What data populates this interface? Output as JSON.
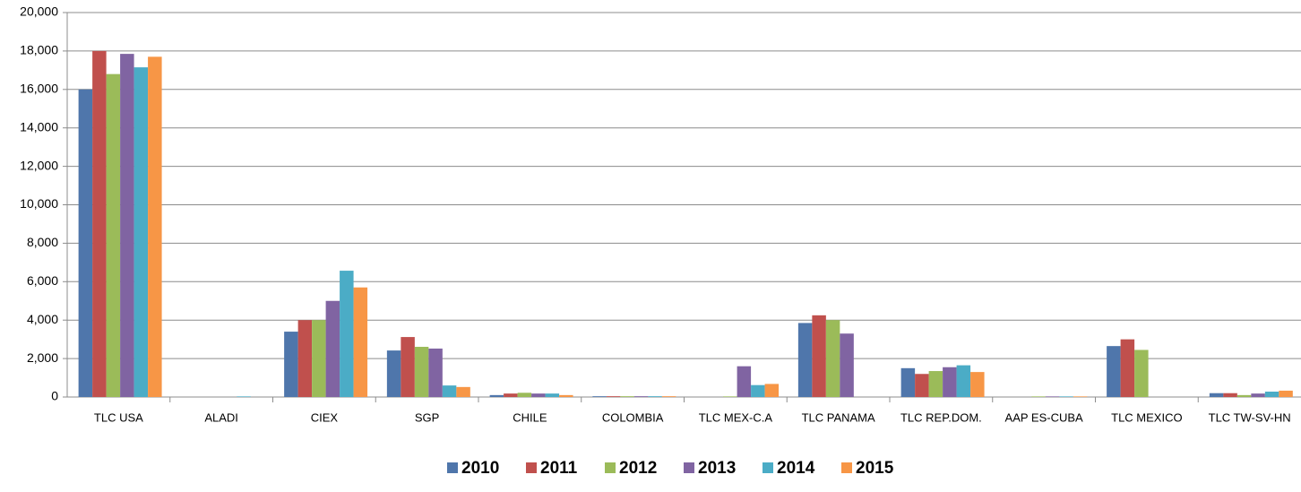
{
  "chart_data": {
    "type": "bar",
    "categories": [
      "TLC USA",
      "ALADI",
      "CIEX",
      "SGP",
      "CHILE",
      "COLOMBIA",
      "TLC MEX-C.A",
      "TLC PANAMA",
      "TLC REP.DOM.",
      "AAP ES-CUBA",
      "TLC MEXICO",
      "TLC TW-SV-HN"
    ],
    "series": [
      {
        "name": "2010",
        "color": "#4f76ab",
        "values": [
          16000,
          0,
          3400,
          2420,
          100,
          40,
          0,
          3850,
          1500,
          0,
          2650,
          200
        ]
      },
      {
        "name": "2011",
        "color": "#c0504d",
        "values": [
          18000,
          0,
          4000,
          3120,
          180,
          40,
          0,
          4250,
          1200,
          0,
          3000,
          200
        ]
      },
      {
        "name": "2012",
        "color": "#9bbb59",
        "values": [
          16800,
          0,
          4000,
          2610,
          220,
          40,
          30,
          4000,
          1350,
          30,
          2450,
          100
        ]
      },
      {
        "name": "2013",
        "color": "#8064a2",
        "values": [
          17850,
          0,
          5000,
          2520,
          180,
          40,
          1600,
          3300,
          1550,
          30,
          0,
          180
        ]
      },
      {
        "name": "2014",
        "color": "#4bacc6",
        "values": [
          17150,
          30,
          6570,
          600,
          180,
          40,
          620,
          0,
          1650,
          30,
          0,
          280
        ]
      },
      {
        "name": "2015",
        "color": "#f79646",
        "values": [
          17700,
          0,
          5700,
          520,
          100,
          40,
          680,
          0,
          1300,
          30,
          0,
          330
        ]
      }
    ],
    "ylim": [
      0,
      20000
    ],
    "yticks": [
      0,
      {
        "value": 2000,
        "label": "2,000"
      },
      {
        "value": 4000,
        "label": "4,000"
      },
      {
        "value": 6000,
        "label": "6,000"
      },
      {
        "value": 8000,
        "label": "8,000"
      },
      {
        "value": 10000,
        "label": "10,000"
      },
      {
        "value": 12000,
        "label": "12,000"
      },
      {
        "value": 14000,
        "label": "14,000"
      },
      {
        "value": 16000,
        "label": "16,000"
      },
      {
        "value": 18000,
        "label": "18,000"
      },
      {
        "value": 20000,
        "label": "20,000"
      }
    ],
    "grid": true,
    "legend": "bottom"
  }
}
